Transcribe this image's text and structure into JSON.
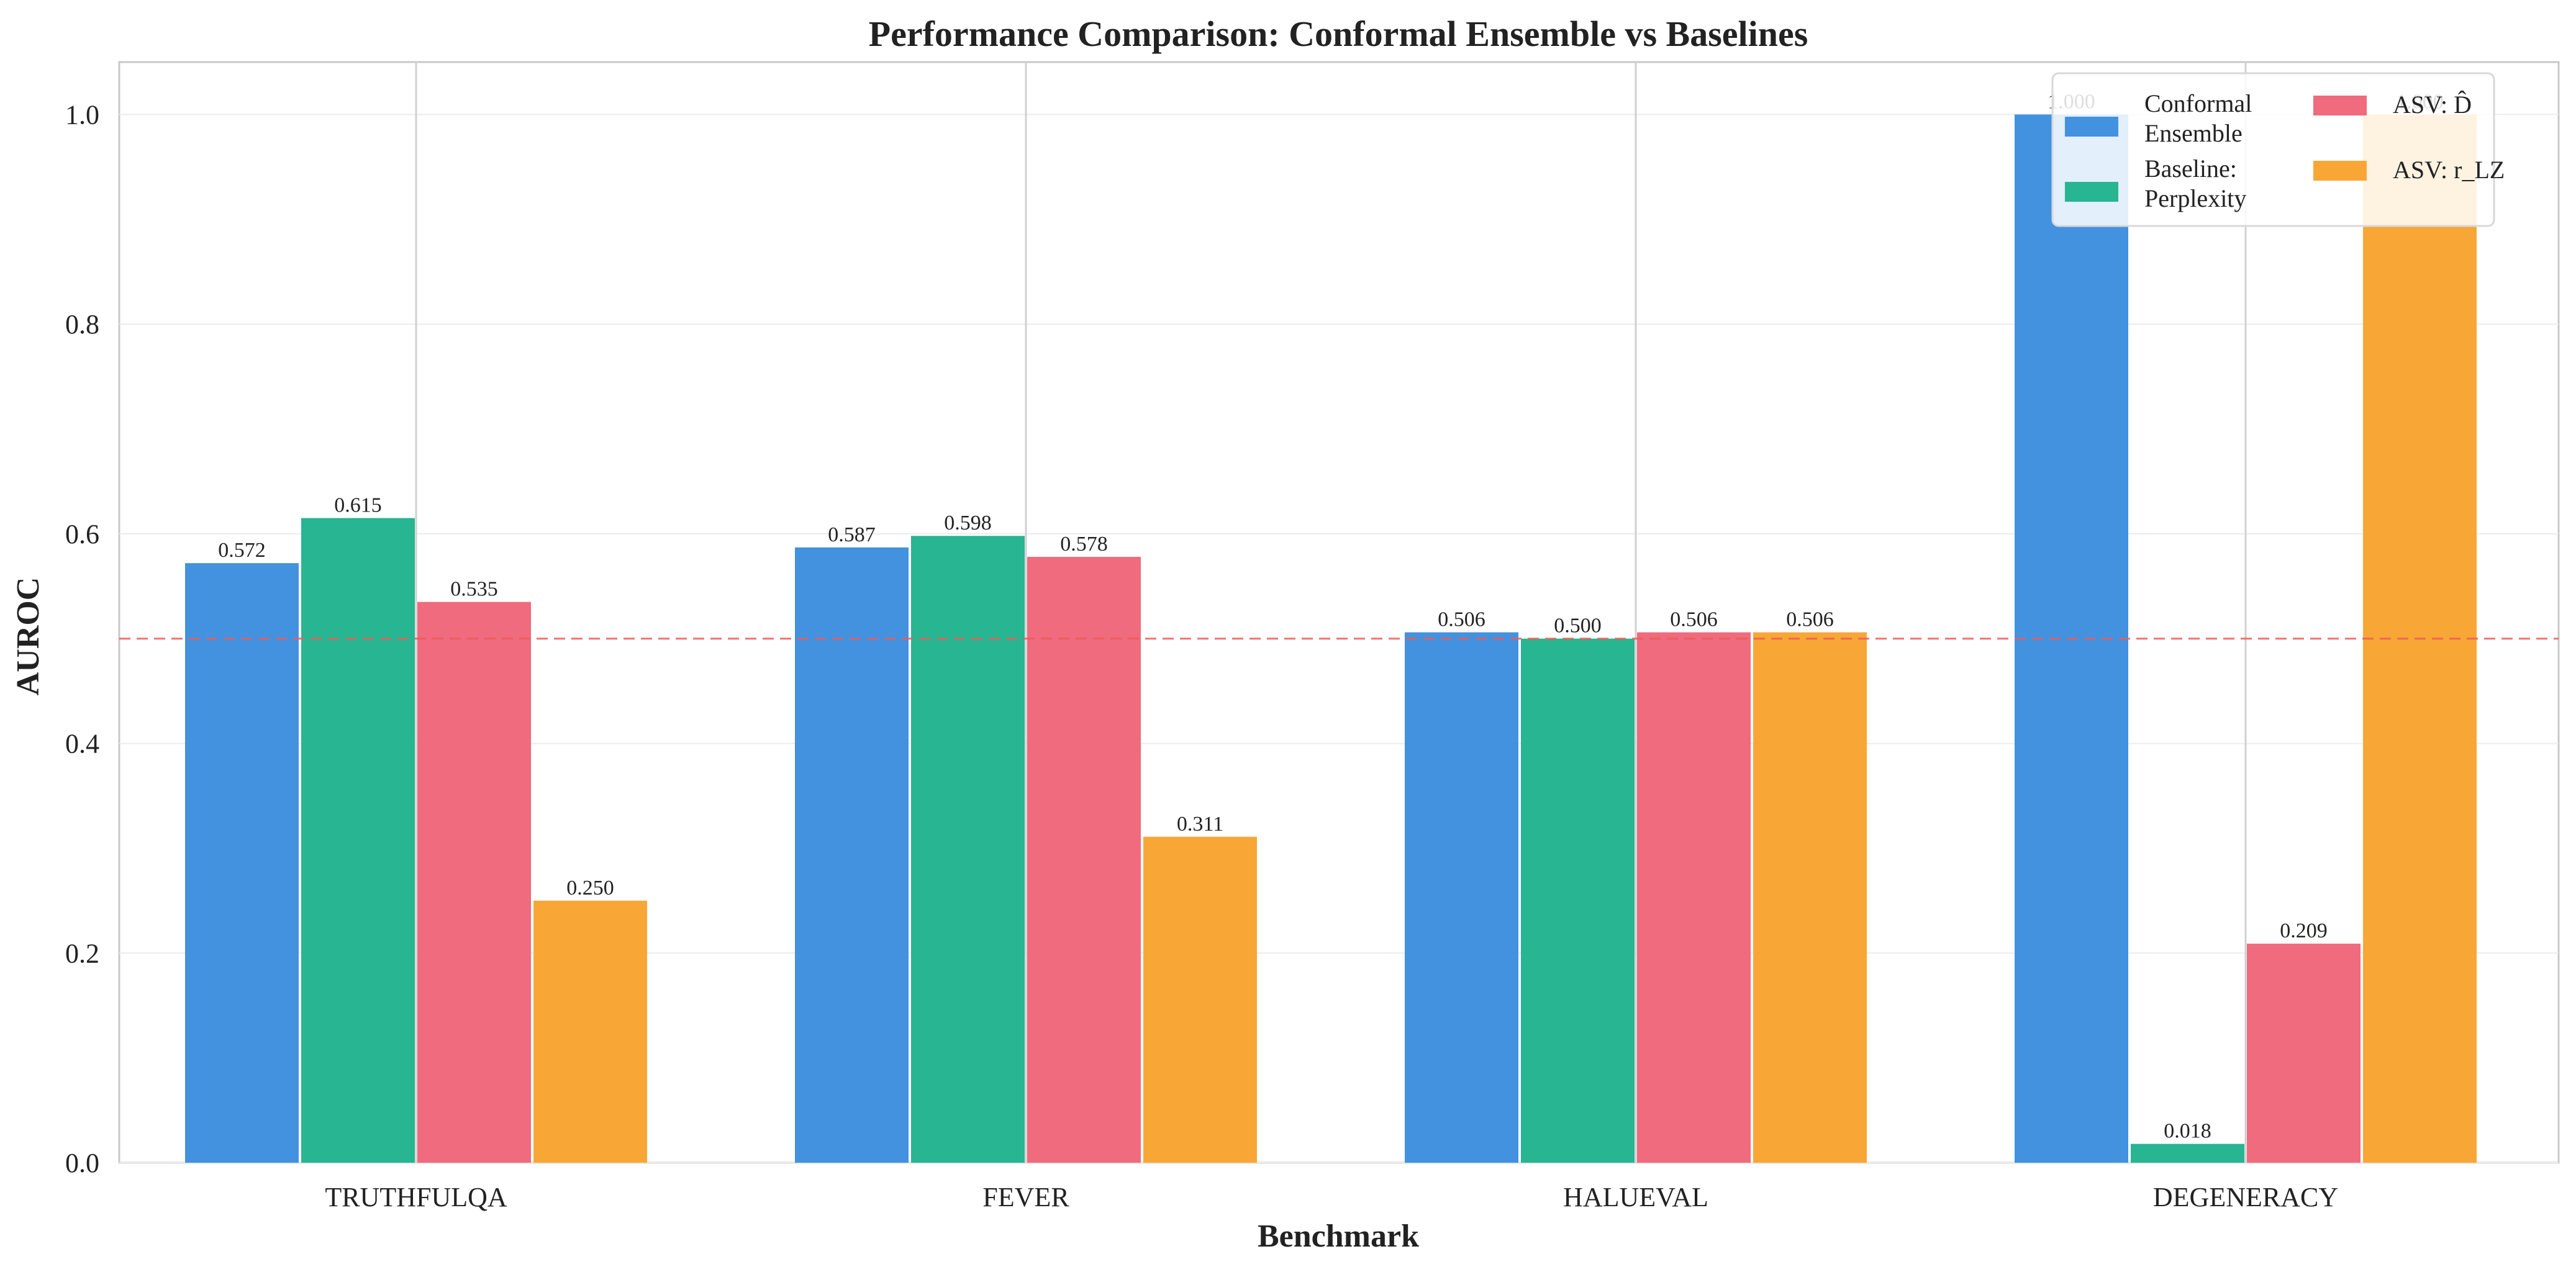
{
  "chart_data": {
    "type": "bar",
    "title": "Performance Comparison: Conformal Ensemble vs Baselines",
    "xlabel": "Benchmark",
    "ylabel": "AUROC",
    "categories": [
      "TRUTHFULQA",
      "FEVER",
      "HALUEVAL",
      "DEGENERACY"
    ],
    "series": [
      {
        "name": "Conformal Ensemble",
        "legend_lines": [
          "Conformal",
          "Ensemble"
        ],
        "color": "#4292e0",
        "values": [
          0.572,
          0.587,
          0.506,
          1.0
        ]
      },
      {
        "name": "Baseline: Perplexity",
        "legend_lines": [
          "Baseline:",
          "Perplexity"
        ],
        "color": "#27b592",
        "values": [
          0.615,
          0.598,
          0.5,
          0.018
        ]
      },
      {
        "name": "ASV: D̂",
        "legend_lines": [
          "ASV: D̂"
        ],
        "color": "#ef6b7d",
        "values": [
          0.535,
          0.578,
          0.506,
          0.209
        ]
      },
      {
        "name": "ASV: r_LZ",
        "legend_lines": [
          "ASV: r_LZ"
        ],
        "color": "#f8a736",
        "values": [
          0.25,
          0.311,
          0.506,
          1.0
        ]
      }
    ],
    "data_labels": [
      [
        "0.572",
        "0.587",
        "0.506",
        "1.000"
      ],
      [
        "0.615",
        "0.598",
        "0.500",
        "0.018"
      ],
      [
        "0.535",
        "0.578",
        "0.506",
        "0.209"
      ],
      [
        "0.250",
        "0.311",
        "0.506",
        "1.000"
      ]
    ],
    "y_ticks": [
      "0.0",
      "0.2",
      "0.4",
      "0.6",
      "0.8",
      "1.0"
    ],
    "y_tick_values": [
      0,
      0.2,
      0.4,
      0.6,
      0.8,
      1.0
    ],
    "ylim": [
      0,
      1.05
    ],
    "reference_line": {
      "y": 0.5,
      "color": "#f05a5a",
      "style": "dashed"
    },
    "grid": true,
    "legend_position": "top-right",
    "legend_columns": 2
  }
}
